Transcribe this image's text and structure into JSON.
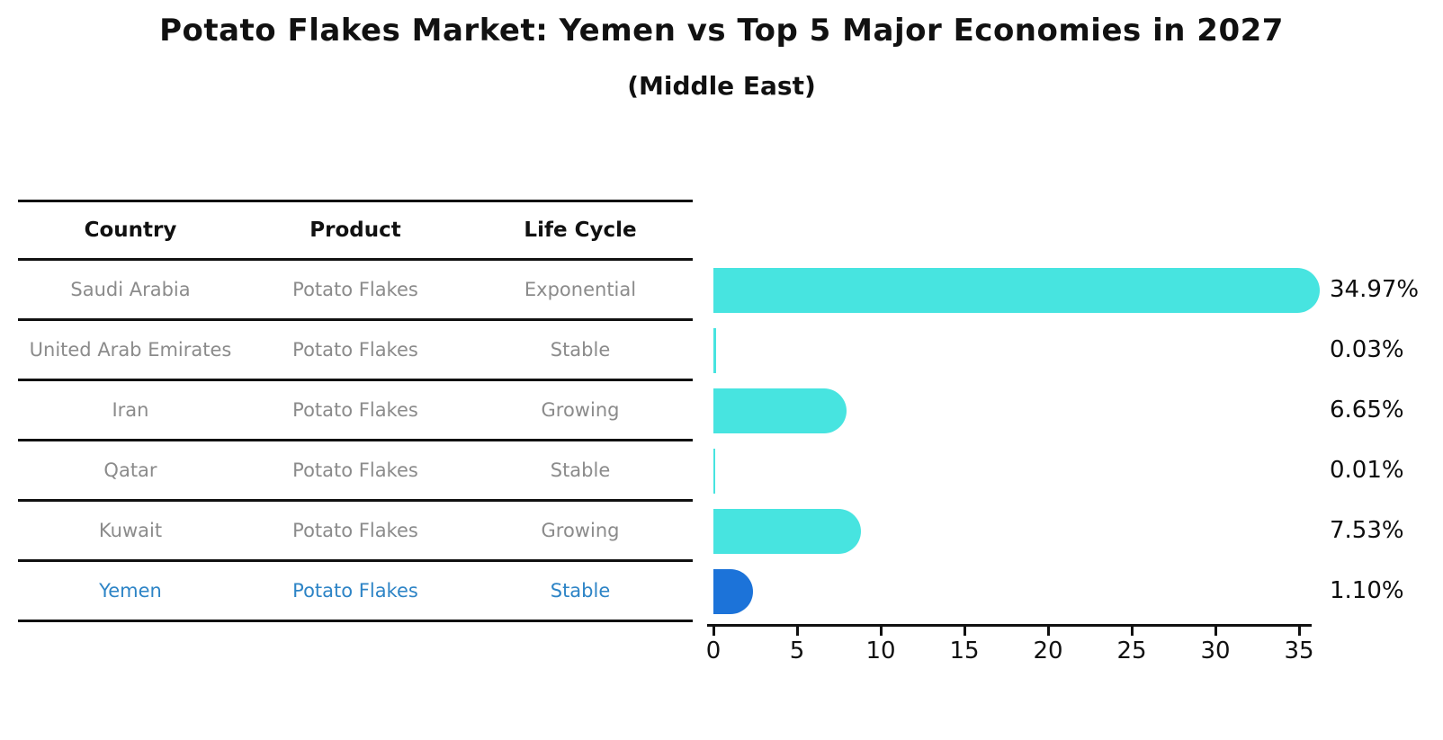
{
  "title": "Potato Flakes Market: Yemen vs Top 5 Major Economies in 2027",
  "subtitle": "(Middle East)",
  "table": {
    "headers": [
      "Country",
      "Product",
      "Life Cycle"
    ],
    "rows": [
      {
        "country": "Saudi Arabia",
        "product": "Potato Flakes",
        "life_cycle": "Exponential",
        "highlight": false
      },
      {
        "country": "United Arab Emirates",
        "product": "Potato Flakes",
        "life_cycle": "Stable",
        "highlight": false
      },
      {
        "country": "Iran",
        "product": "Potato Flakes",
        "life_cycle": "Growing",
        "highlight": false
      },
      {
        "country": "Qatar",
        "product": "Potato Flakes",
        "life_cycle": "Stable",
        "highlight": false
      },
      {
        "country": "Kuwait",
        "product": "Potato Flakes",
        "life_cycle": "Growing",
        "highlight": false
      },
      {
        "country": "Yemen",
        "product": "Potato Flakes",
        "life_cycle": "Stable",
        "highlight": true
      }
    ]
  },
  "chart_data": {
    "type": "bar",
    "orientation": "horizontal",
    "title": "Potato Flakes Market: Yemen vs Top 5 Major Economies in 2027",
    "subtitle": "(Middle East)",
    "categories": [
      "Saudi Arabia",
      "United Arab Emirates",
      "Iran",
      "Qatar",
      "Kuwait",
      "Yemen"
    ],
    "values": [
      34.97,
      0.03,
      6.65,
      0.01,
      7.53,
      1.1
    ],
    "value_labels": [
      "34.97%",
      "0.03%",
      "6.65%",
      "0.01%",
      "7.53%",
      "1.10%"
    ],
    "xlim": [
      0,
      36.5
    ],
    "xticks": [
      0,
      5,
      10,
      15,
      20,
      25,
      30,
      35
    ],
    "grid": false,
    "legend": false,
    "highlight_index": 5
  },
  "colors": {
    "background": "#ffffff",
    "text": "#111111",
    "muted_text": "#8b8b8b",
    "highlight_text": "#2d84c6",
    "bar": "#47e4e0",
    "highlight_bar": "#1c73d9"
  }
}
